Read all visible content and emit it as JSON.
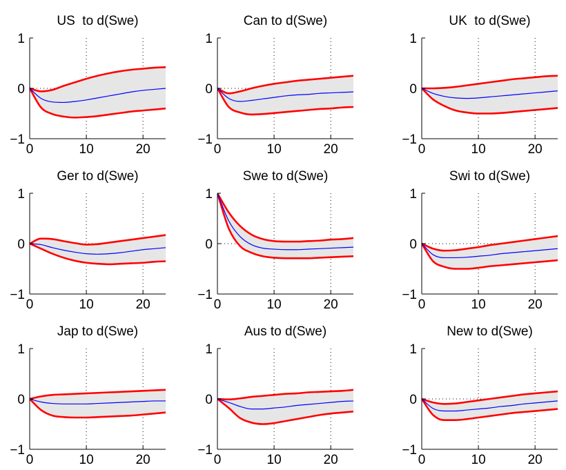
{
  "chart_data": [
    {
      "type": "line",
      "title": "US  to d(Swe)",
      "xlim": [
        0,
        24
      ],
      "ylim": [
        -1,
        1
      ],
      "x_ticks": [
        0,
        10,
        20
      ],
      "y_ticks": [
        -1,
        0,
        1
      ],
      "x_tick_labels": [
        "0",
        "10",
        "20"
      ],
      "y_tick_labels": [
        "−1",
        "0",
        "1"
      ],
      "grid": "dotted",
      "x": [
        0,
        2,
        4,
        6,
        8,
        10,
        12,
        14,
        16,
        18,
        20,
        22,
        24
      ],
      "series": [
        {
          "role": "upper",
          "values": [
            0,
            -0.06,
            -0.03,
            0.05,
            0.12,
            0.19,
            0.25,
            0.3,
            0.34,
            0.37,
            0.39,
            0.41,
            0.42
          ]
        },
        {
          "role": "median",
          "values": [
            0,
            -0.2,
            -0.27,
            -0.28,
            -0.26,
            -0.23,
            -0.19,
            -0.15,
            -0.11,
            -0.07,
            -0.04,
            -0.02,
            0
          ]
        },
        {
          "role": "lower",
          "values": [
            0,
            -0.38,
            -0.51,
            -0.56,
            -0.58,
            -0.57,
            -0.55,
            -0.52,
            -0.49,
            -0.46,
            -0.44,
            -0.42,
            -0.4
          ]
        }
      ]
    },
    {
      "type": "line",
      "title": "Can to d(Swe)",
      "xlim": [
        0,
        24
      ],
      "ylim": [
        -1,
        1
      ],
      "x_ticks": [
        0,
        10,
        20
      ],
      "y_ticks": [
        -1,
        0,
        1
      ],
      "x_tick_labels": [
        "0",
        "10",
        "20"
      ],
      "y_tick_labels": [
        "−1",
        "0",
        "1"
      ],
      "grid": "dotted",
      "x": [
        0,
        2,
        4,
        6,
        8,
        10,
        12,
        14,
        16,
        18,
        20,
        22,
        24
      ],
      "series": [
        {
          "role": "upper",
          "values": [
            0,
            -0.1,
            -0.06,
            0.0,
            0.05,
            0.09,
            0.12,
            0.15,
            0.17,
            0.19,
            0.21,
            0.23,
            0.25
          ]
        },
        {
          "role": "median",
          "values": [
            0,
            -0.2,
            -0.26,
            -0.24,
            -0.21,
            -0.18,
            -0.15,
            -0.13,
            -0.12,
            -0.1,
            -0.09,
            -0.08,
            -0.07
          ]
        },
        {
          "role": "lower",
          "values": [
            0,
            -0.37,
            -0.48,
            -0.52,
            -0.51,
            -0.49,
            -0.47,
            -0.45,
            -0.43,
            -0.41,
            -0.4,
            -0.38,
            -0.37
          ]
        }
      ]
    },
    {
      "type": "line",
      "title": "UK  to d(Swe)",
      "xlim": [
        0,
        24
      ],
      "ylim": [
        -1,
        1
      ],
      "x_ticks": [
        0,
        10,
        20
      ],
      "y_ticks": [
        -1,
        0,
        1
      ],
      "x_tick_labels": [
        "0",
        "10",
        "20"
      ],
      "y_tick_labels": [
        "−1",
        "0",
        "1"
      ],
      "grid": "dotted",
      "x": [
        0,
        2,
        4,
        6,
        8,
        10,
        12,
        14,
        16,
        18,
        20,
        22,
        24
      ],
      "series": [
        {
          "role": "upper",
          "values": [
            0,
            0.0,
            0.01,
            0.03,
            0.06,
            0.09,
            0.12,
            0.15,
            0.18,
            0.2,
            0.22,
            0.24,
            0.25
          ]
        },
        {
          "role": "median",
          "values": [
            0,
            -0.1,
            -0.16,
            -0.19,
            -0.2,
            -0.19,
            -0.17,
            -0.15,
            -0.13,
            -0.11,
            -0.09,
            -0.07,
            -0.05
          ]
        },
        {
          "role": "lower",
          "values": [
            0,
            -0.22,
            -0.35,
            -0.44,
            -0.48,
            -0.5,
            -0.5,
            -0.49,
            -0.47,
            -0.45,
            -0.43,
            -0.41,
            -0.39
          ]
        }
      ]
    },
    {
      "type": "line",
      "title": "Ger to d(Swe)",
      "xlim": [
        0,
        24
      ],
      "ylim": [
        -1,
        1
      ],
      "x_ticks": [
        0,
        10,
        20
      ],
      "y_ticks": [
        -1,
        0,
        1
      ],
      "x_tick_labels": [
        "0",
        "10",
        "20"
      ],
      "y_tick_labels": [
        "−1",
        "0",
        "1"
      ],
      "grid": "dotted",
      "x": [
        0,
        2,
        4,
        6,
        8,
        10,
        12,
        14,
        16,
        18,
        20,
        22,
        24
      ],
      "series": [
        {
          "role": "upper",
          "values": [
            0,
            0.1,
            0.09,
            0.05,
            0.01,
            -0.02,
            -0.01,
            0.02,
            0.05,
            0.08,
            0.11,
            0.14,
            0.17
          ]
        },
        {
          "role": "median",
          "values": [
            0,
            -0.02,
            -0.08,
            -0.13,
            -0.17,
            -0.2,
            -0.21,
            -0.2,
            -0.18,
            -0.15,
            -0.12,
            -0.1,
            -0.08
          ]
        },
        {
          "role": "lower",
          "values": [
            0,
            -0.1,
            -0.2,
            -0.28,
            -0.34,
            -0.38,
            -0.4,
            -0.41,
            -0.4,
            -0.39,
            -0.38,
            -0.36,
            -0.35
          ]
        }
      ]
    },
    {
      "type": "line",
      "title": "Swe to d(Swe)",
      "xlim": [
        0,
        24
      ],
      "ylim": [
        -1,
        1
      ],
      "x_ticks": [
        0,
        10,
        20
      ],
      "y_ticks": [
        -1,
        0,
        1
      ],
      "x_tick_labels": [
        "0",
        "10",
        "20"
      ],
      "y_tick_labels": [
        "−1",
        "0",
        "1"
      ],
      "grid": "dotted",
      "x": [
        0,
        2,
        4,
        6,
        8,
        10,
        12,
        14,
        16,
        18,
        20,
        22,
        24
      ],
      "series": [
        {
          "role": "upper",
          "values": [
            1,
            0.62,
            0.35,
            0.18,
            0.09,
            0.05,
            0.04,
            0.04,
            0.05,
            0.06,
            0.08,
            0.09,
            0.11
          ]
        },
        {
          "role": "median",
          "values": [
            1,
            0.45,
            0.14,
            -0.02,
            -0.09,
            -0.11,
            -0.12,
            -0.12,
            -0.11,
            -0.1,
            -0.09,
            -0.08,
            -0.07
          ]
        },
        {
          "role": "lower",
          "values": [
            1,
            0.3,
            -0.05,
            -0.18,
            -0.25,
            -0.28,
            -0.29,
            -0.29,
            -0.29,
            -0.28,
            -0.27,
            -0.26,
            -0.25
          ]
        }
      ]
    },
    {
      "type": "line",
      "title": "Swi to d(Swe)",
      "xlim": [
        0,
        24
      ],
      "ylim": [
        -1,
        1
      ],
      "x_ticks": [
        0,
        10,
        20
      ],
      "y_ticks": [
        -1,
        0,
        1
      ],
      "x_tick_labels": [
        "0",
        "10",
        "20"
      ],
      "y_tick_labels": [
        "−1",
        "0",
        "1"
      ],
      "grid": "dotted",
      "x": [
        0,
        2,
        4,
        6,
        8,
        10,
        12,
        14,
        16,
        18,
        20,
        22,
        24
      ],
      "series": [
        {
          "role": "upper",
          "values": [
            0,
            -0.1,
            -0.14,
            -0.13,
            -0.1,
            -0.07,
            -0.03,
            0.0,
            0.03,
            0.06,
            0.09,
            0.12,
            0.15
          ]
        },
        {
          "role": "median",
          "values": [
            0,
            -0.22,
            -0.28,
            -0.28,
            -0.27,
            -0.25,
            -0.23,
            -0.2,
            -0.18,
            -0.16,
            -0.14,
            -0.12,
            -0.1
          ]
        },
        {
          "role": "lower",
          "values": [
            0,
            -0.35,
            -0.46,
            -0.5,
            -0.5,
            -0.48,
            -0.45,
            -0.43,
            -0.41,
            -0.39,
            -0.37,
            -0.35,
            -0.33
          ]
        }
      ]
    },
    {
      "type": "line",
      "title": "Jap to d(Swe)",
      "xlim": [
        0,
        24
      ],
      "ylim": [
        -1,
        1
      ],
      "x_ticks": [
        0,
        10,
        20
      ],
      "y_ticks": [
        -1,
        0,
        1
      ],
      "x_tick_labels": [
        "0",
        "10",
        "20"
      ],
      "y_tick_labels": [
        "−1",
        "0",
        "1"
      ],
      "grid": "dotted",
      "x": [
        0,
        2,
        4,
        6,
        8,
        10,
        12,
        14,
        16,
        18,
        20,
        22,
        24
      ],
      "series": [
        {
          "role": "upper",
          "values": [
            0,
            0.05,
            0.08,
            0.09,
            0.1,
            0.11,
            0.12,
            0.13,
            0.14,
            0.15,
            0.16,
            0.17,
            0.18
          ]
        },
        {
          "role": "median",
          "values": [
            0,
            -0.06,
            -0.09,
            -0.1,
            -0.1,
            -0.1,
            -0.09,
            -0.08,
            -0.07,
            -0.06,
            -0.05,
            -0.04,
            -0.04
          ]
        },
        {
          "role": "lower",
          "values": [
            0,
            -0.22,
            -0.33,
            -0.36,
            -0.37,
            -0.37,
            -0.36,
            -0.35,
            -0.34,
            -0.33,
            -0.31,
            -0.29,
            -0.27
          ]
        }
      ]
    },
    {
      "type": "line",
      "title": "Aus to d(Swe)",
      "xlim": [
        0,
        24
      ],
      "ylim": [
        -1,
        1
      ],
      "x_ticks": [
        0,
        10,
        20
      ],
      "y_ticks": [
        -1,
        0,
        1
      ],
      "x_tick_labels": [
        "0",
        "10",
        "20"
      ],
      "y_tick_labels": [
        "−1",
        "0",
        "1"
      ],
      "grid": "dotted",
      "x": [
        0,
        2,
        4,
        6,
        8,
        10,
        12,
        14,
        16,
        18,
        20,
        22,
        24
      ],
      "series": [
        {
          "role": "upper",
          "values": [
            0,
            -0.01,
            0.01,
            0.04,
            0.06,
            0.08,
            0.1,
            0.11,
            0.13,
            0.14,
            0.15,
            0.16,
            0.18
          ]
        },
        {
          "role": "median",
          "values": [
            0,
            -0.07,
            -0.15,
            -0.2,
            -0.2,
            -0.18,
            -0.16,
            -0.13,
            -0.11,
            -0.09,
            -0.07,
            -0.05,
            -0.04
          ]
        },
        {
          "role": "lower",
          "values": [
            0,
            -0.18,
            -0.38,
            -0.47,
            -0.5,
            -0.48,
            -0.44,
            -0.4,
            -0.36,
            -0.32,
            -0.29,
            -0.27,
            -0.25
          ]
        }
      ]
    },
    {
      "type": "line",
      "title": "New to d(Swe)",
      "xlim": [
        0,
        24
      ],
      "ylim": [
        -1,
        1
      ],
      "x_ticks": [
        0,
        10,
        20
      ],
      "y_ticks": [
        -1,
        0,
        1
      ],
      "x_tick_labels": [
        "0",
        "10",
        "20"
      ],
      "y_tick_labels": [
        "−1",
        "0",
        "1"
      ],
      "grid": "dotted",
      "x": [
        0,
        2,
        4,
        6,
        8,
        10,
        12,
        14,
        16,
        18,
        20,
        22,
        24
      ],
      "series": [
        {
          "role": "upper",
          "values": [
            0,
            -0.07,
            -0.1,
            -0.09,
            -0.06,
            -0.03,
            0.0,
            0.03,
            0.06,
            0.09,
            0.11,
            0.13,
            0.15
          ]
        },
        {
          "role": "median",
          "values": [
            0,
            -0.19,
            -0.24,
            -0.24,
            -0.22,
            -0.2,
            -0.18,
            -0.15,
            -0.13,
            -0.1,
            -0.08,
            -0.06,
            -0.04
          ]
        },
        {
          "role": "lower",
          "values": [
            0,
            -0.32,
            -0.42,
            -0.42,
            -0.4,
            -0.37,
            -0.34,
            -0.31,
            -0.28,
            -0.26,
            -0.24,
            -0.22,
            -0.2
          ]
        }
      ]
    }
  ],
  "colors": {
    "band_fill": "#e6e6e6",
    "band_edge": "#ff0000",
    "median_line": "#0000ff",
    "axis": "#000000",
    "grid": "#000000"
  }
}
